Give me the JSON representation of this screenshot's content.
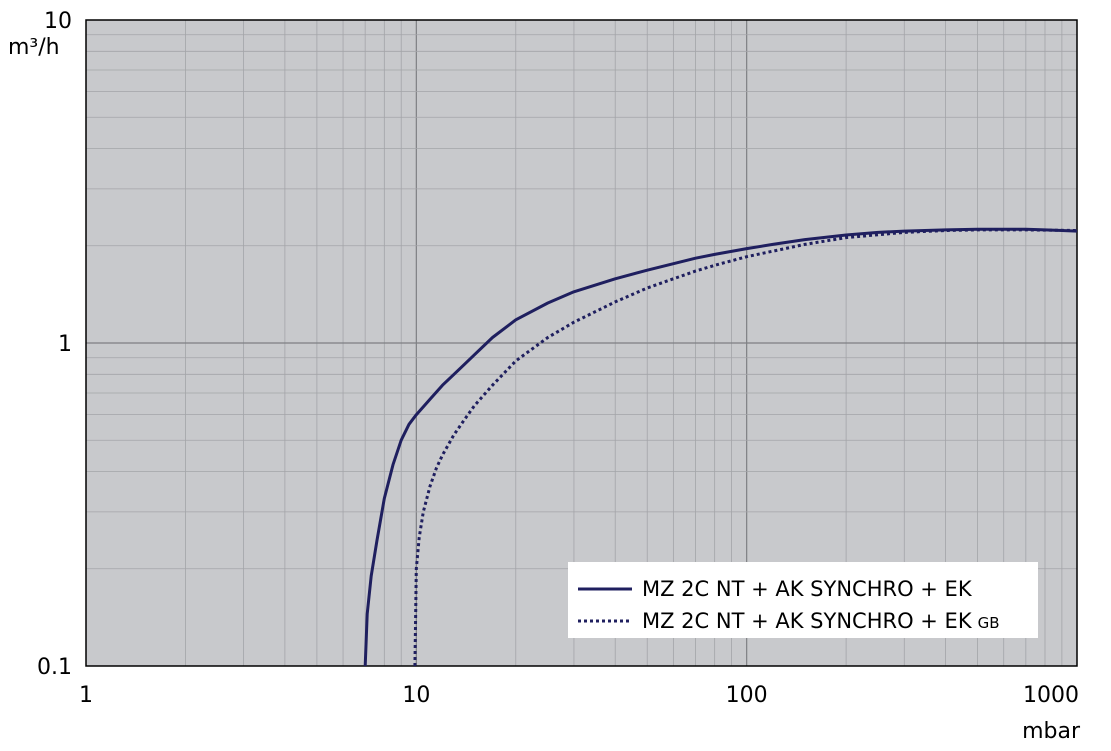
{
  "chart_data": {
    "type": "line",
    "x_scale": "log",
    "y_scale": "log",
    "xlim": [
      1,
      1000
    ],
    "ylim": [
      0.1,
      10
    ],
    "x_unit": "mbar",
    "y_unit": "m³/h",
    "x_tick_labels": [
      "1",
      "10",
      "100",
      "1000"
    ],
    "y_tick_labels": [
      "0.1",
      "1",
      "10"
    ],
    "grid": true,
    "legend_position": "bottom-right",
    "colors": {
      "plot_background": "#c8c9cc",
      "series": "#1f1f5f",
      "grid_minor": "#a3a4a8",
      "grid_major": "#7e7f83"
    },
    "series": [
      {
        "name": "MZ 2C NT + AK SYNCHRO + EK",
        "style": "solid",
        "x": [
          7.0,
          7.1,
          7.3,
          7.6,
          8.0,
          8.5,
          9.0,
          9.5,
          10.0,
          11.0,
          12.0,
          13.0,
          14.0,
          15.0,
          17.0,
          20.0,
          25.0,
          30.0,
          40.0,
          50.0,
          60.0,
          70.0,
          80.0,
          100.0,
          120.0,
          150.0,
          200.0,
          250.0,
          300.0,
          400.0,
          500.0,
          600.0,
          700.0,
          800.0,
          900.0,
          1000.0
        ],
        "y": [
          0.1,
          0.145,
          0.19,
          0.245,
          0.33,
          0.42,
          0.5,
          0.56,
          0.6,
          0.67,
          0.74,
          0.8,
          0.86,
          0.92,
          1.04,
          1.18,
          1.33,
          1.44,
          1.58,
          1.68,
          1.76,
          1.83,
          1.88,
          1.96,
          2.02,
          2.09,
          2.16,
          2.2,
          2.22,
          2.24,
          2.25,
          2.25,
          2.25,
          2.24,
          2.23,
          2.22
        ]
      },
      {
        "name": "MZ 2C NT + AK SYNCHRO + EK",
        "name_suffix": "GB",
        "style": "dotted",
        "x": [
          9.9,
          9.95,
          10.0,
          10.2,
          10.5,
          11.0,
          11.5,
          12.0,
          13.0,
          14.0,
          15.0,
          17.0,
          20.0,
          25.0,
          30.0,
          40.0,
          50.0,
          60.0,
          70.0,
          80.0,
          100.0,
          150.0,
          200.0,
          300.0,
          400.0,
          500.0,
          700.0,
          1000.0
        ],
        "y": [
          0.1,
          0.14,
          0.2,
          0.25,
          0.3,
          0.36,
          0.41,
          0.45,
          0.52,
          0.58,
          0.64,
          0.74,
          0.88,
          1.04,
          1.16,
          1.34,
          1.48,
          1.58,
          1.67,
          1.74,
          1.85,
          2.02,
          2.12,
          2.2,
          2.23,
          2.24,
          2.24,
          2.23
        ]
      }
    ]
  }
}
